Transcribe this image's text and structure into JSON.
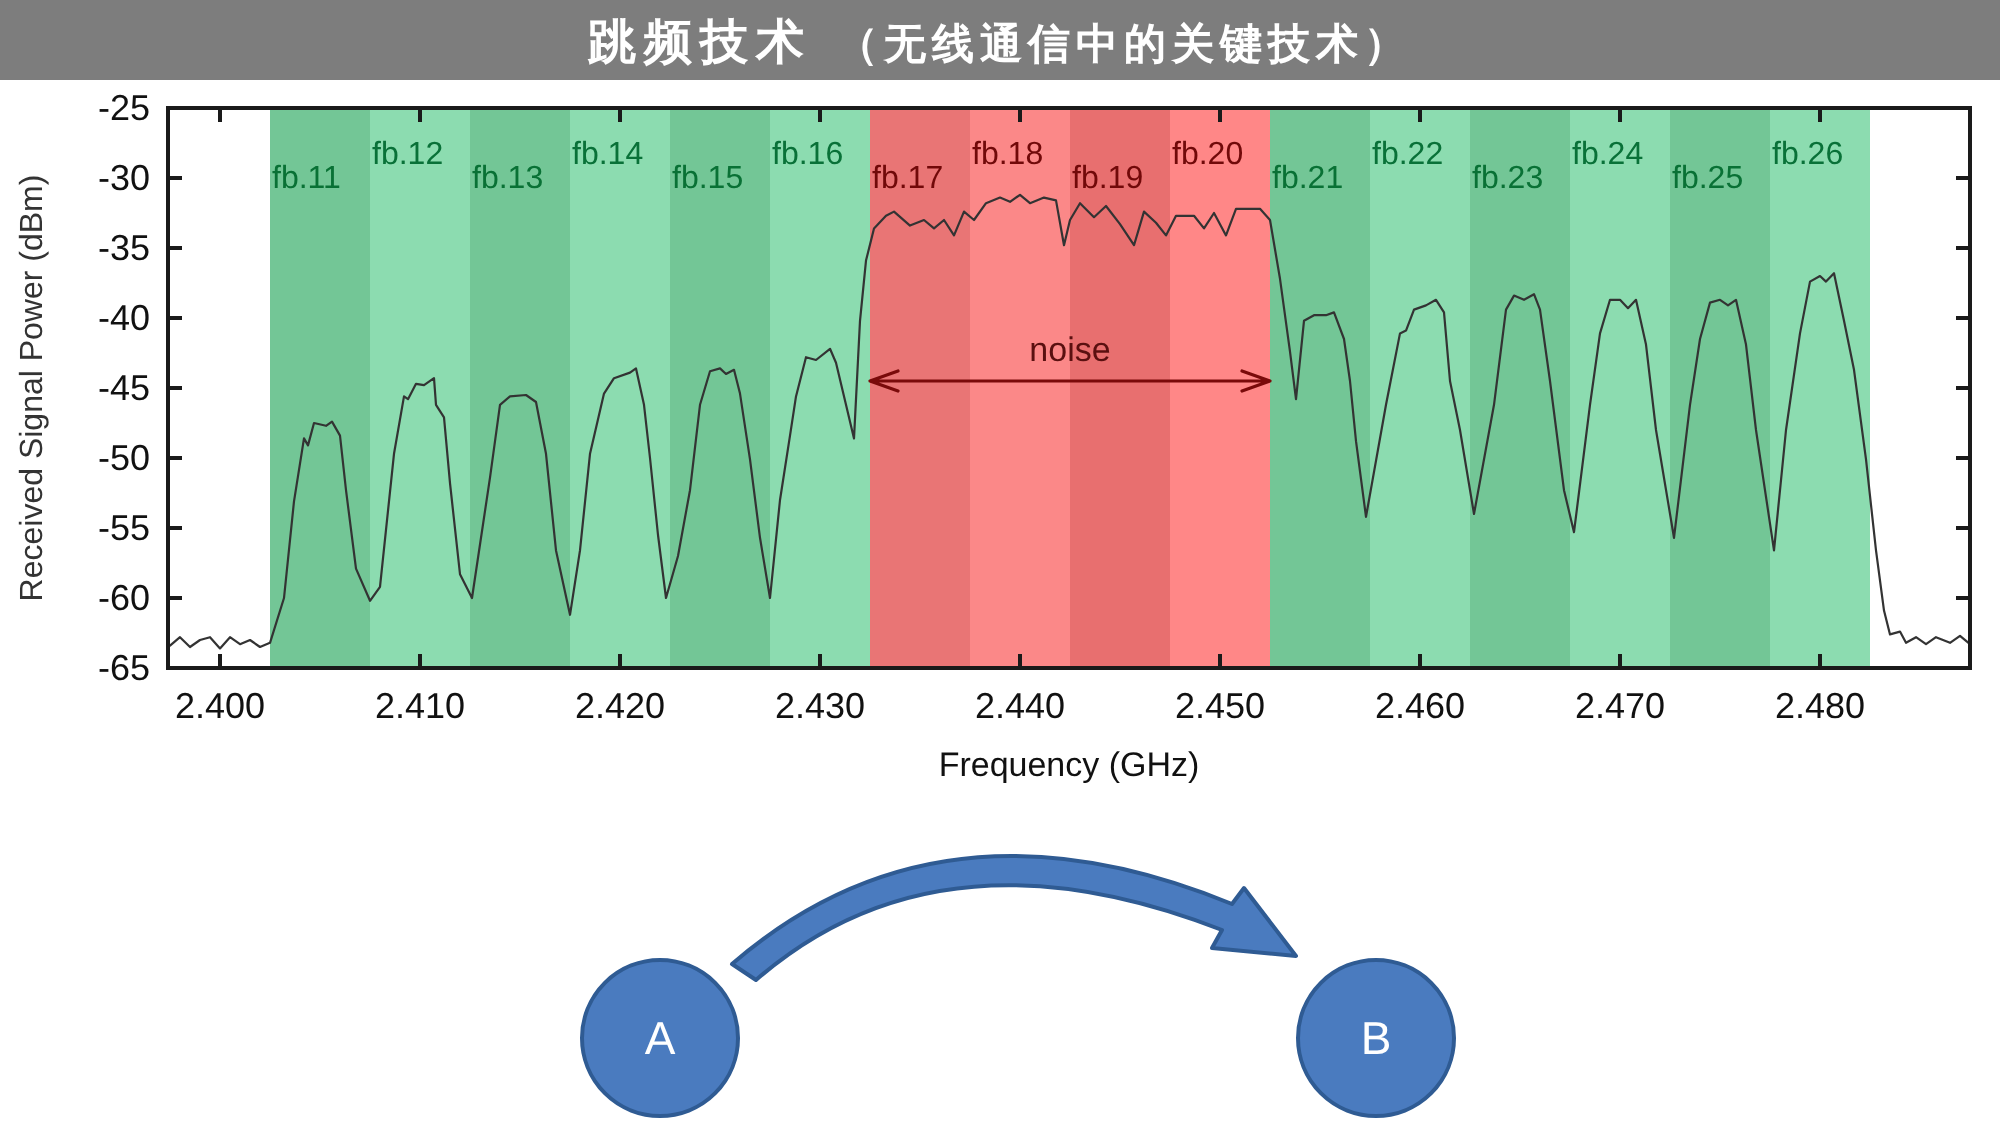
{
  "chart_data": {
    "type": "line",
    "title": "跳频技术",
    "subtitle": "（无线通信中的关键技术）",
    "xlabel": "Frequency (GHz)",
    "ylabel": "Received Signal Power (dBm)",
    "xlim": [
      2.3974,
      2.4875
    ],
    "xticks": [
      {
        "value": 2.4,
        "label": "2.400"
      },
      {
        "value": 2.41,
        "label": "2.410"
      },
      {
        "value": 2.42,
        "label": "2.420"
      },
      {
        "value": 2.43,
        "label": "2.430"
      },
      {
        "value": 2.44,
        "label": "2.440"
      },
      {
        "value": 2.45,
        "label": "2.450"
      },
      {
        "value": 2.46,
        "label": "2.460"
      },
      {
        "value": 2.47,
        "label": "2.470"
      },
      {
        "value": 2.48,
        "label": "2.480"
      }
    ],
    "ylim": [
      -65,
      -25
    ],
    "yticks": [
      -65,
      -60,
      -55,
      -50,
      -45,
      -40,
      -35,
      -30,
      -25
    ],
    "color": "#333333",
    "line_style": "solid",
    "x": [
      2.3975,
      2.398,
      2.3985,
      2.399,
      2.3995,
      2.4,
      2.4005,
      2.401,
      2.4015,
      2.402,
      2.4025,
      2.4032,
      2.4037,
      2.4042,
      2.4044,
      2.4047,
      2.4053,
      2.4056,
      2.406,
      2.4063,
      2.4068,
      2.4075,
      2.408,
      2.4087,
      2.4092,
      2.4094,
      2.4098,
      2.4102,
      2.4107,
      2.4108,
      2.4112,
      2.4115,
      2.412,
      2.4126,
      2.4135,
      2.414,
      2.4145,
      2.4153,
      2.4158,
      2.4163,
      2.4168,
      2.4175,
      2.418,
      2.4185,
      2.4192,
      2.4197,
      2.4205,
      2.4208,
      2.4212,
      2.4215,
      2.4219,
      2.4223,
      2.4229,
      2.4235,
      2.424,
      2.4245,
      2.425,
      2.4253,
      2.4257,
      2.426,
      2.4265,
      2.427,
      2.4275,
      2.428,
      2.4285,
      2.4288,
      2.4293,
      2.4298,
      2.4305,
      2.4308,
      2.4313,
      2.4317,
      2.432,
      2.4323,
      2.4327,
      2.4333,
      2.4337,
      2.4345,
      2.4352,
      2.4357,
      2.4362,
      2.4367,
      2.4372,
      2.4377,
      2.4383,
      2.439,
      2.4395,
      2.44,
      2.4405,
      2.4412,
      2.4418,
      2.4422,
      2.4425,
      2.443,
      2.4437,
      2.4443,
      2.445,
      2.4457,
      2.4462,
      2.4468,
      2.4473,
      2.4478,
      2.4487,
      2.4492,
      2.4497,
      2.4503,
      2.4508,
      2.452,
      2.4525,
      2.453,
      2.4535,
      2.4538,
      2.4542,
      2.4547,
      2.4553,
      2.4557,
      2.4562,
      2.4565,
      2.4568,
      2.4573,
      2.4583,
      2.459,
      2.4593,
      2.4597,
      2.4603,
      2.4608,
      2.4612,
      2.4615,
      2.462,
      2.4627,
      2.4637,
      2.4643,
      2.4647,
      2.4652,
      2.4657,
      2.466,
      2.4665,
      2.4672,
      2.4677,
      2.4685,
      2.469,
      2.4695,
      2.47,
      2.4704,
      2.4708,
      2.4713,
      2.4718,
      2.4727,
      2.4735,
      2.474,
      2.4745,
      2.475,
      2.4754,
      2.4758,
      2.4763,
      2.4768,
      2.4777,
      2.4783,
      2.479,
      2.4795,
      2.48,
      2.4803,
      2.4807,
      2.4812,
      2.4817,
      2.4823,
      2.4828,
      2.4832,
      2.4835,
      2.484,
      2.4843,
      2.4848,
      2.4853,
      2.4858,
      2.4865,
      2.487,
      2.4875
    ],
    "values": [
      -63.4,
      -62.8,
      -63.5,
      -63.0,
      -62.8,
      -63.6,
      -62.8,
      -63.3,
      -63.0,
      -63.5,
      -63.2,
      -60.0,
      -53.1,
      -48.6,
      -49.1,
      -47.5,
      -47.7,
      -47.4,
      -48.4,
      -52.3,
      -57.9,
      -60.2,
      -59.2,
      -49.7,
      -45.6,
      -45.8,
      -44.7,
      -44.8,
      -44.3,
      -46.2,
      -47.1,
      -51.8,
      -58.3,
      -60.0,
      -51.4,
      -46.2,
      -45.6,
      -45.5,
      -46.0,
      -49.7,
      -56.6,
      -61.2,
      -56.6,
      -49.7,
      -45.4,
      -44.3,
      -43.9,
      -43.6,
      -46.2,
      -50.0,
      -55.5,
      -60.0,
      -57.0,
      -52.3,
      -46.2,
      -43.8,
      -43.6,
      -44.0,
      -43.7,
      -45.4,
      -50.1,
      -55.7,
      -60.0,
      -53.0,
      -48.4,
      -45.6,
      -42.8,
      -43.0,
      -42.2,
      -43.2,
      -46.2,
      -48.6,
      -40.2,
      -35.9,
      -33.6,
      -32.7,
      -32.4,
      -33.4,
      -33.0,
      -33.6,
      -33.0,
      -34.1,
      -32.4,
      -33.0,
      -31.8,
      -31.4,
      -31.7,
      -31.2,
      -31.8,
      -31.4,
      -31.6,
      -34.8,
      -33.0,
      -31.8,
      -32.8,
      -32.0,
      -33.3,
      -34.8,
      -32.4,
      -33.2,
      -34.1,
      -32.7,
      -32.7,
      -33.6,
      -32.5,
      -34.1,
      -32.2,
      -32.2,
      -33.0,
      -37.2,
      -42.4,
      -45.8,
      -40.2,
      -39.8,
      -39.8,
      -39.6,
      -41.5,
      -44.5,
      -48.8,
      -54.2,
      -46.2,
      -41.1,
      -40.9,
      -39.4,
      -39.1,
      -38.7,
      -39.6,
      -44.5,
      -48.0,
      -54.0,
      -46.2,
      -39.4,
      -38.4,
      -38.7,
      -38.3,
      -39.4,
      -44.5,
      -52.3,
      -55.3,
      -46.2,
      -41.1,
      -38.7,
      -38.7,
      -39.3,
      -38.7,
      -41.9,
      -48.0,
      -55.7,
      -46.2,
      -41.5,
      -38.9,
      -38.7,
      -39.1,
      -38.7,
      -41.9,
      -48.0,
      -56.6,
      -48.0,
      -41.1,
      -37.4,
      -37.0,
      -37.4,
      -36.8,
      -40.2,
      -43.7,
      -50.1,
      -56.6,
      -60.9,
      -62.6,
      -62.4,
      -63.2,
      -62.8,
      -63.3,
      -62.8,
      -63.2,
      -62.7,
      -63.3
    ],
    "bands": [
      {
        "axis": "x",
        "from": 2.4025,
        "to": 2.4075,
        "label": "fb.11",
        "color": "#73c696"
      },
      {
        "axis": "x",
        "from": 2.4075,
        "to": 2.4125,
        "label": "fb.12",
        "color": "#8cdcb0"
      },
      {
        "axis": "x",
        "from": 2.4125,
        "to": 2.4175,
        "label": "fb.13",
        "color": "#73c696"
      },
      {
        "axis": "x",
        "from": 2.4175,
        "to": 2.4225,
        "label": "fb.14",
        "color": "#8cdcb0"
      },
      {
        "axis": "x",
        "from": 2.4225,
        "to": 2.4275,
        "label": "fb.15",
        "color": "#73c696"
      },
      {
        "axis": "x",
        "from": 2.4275,
        "to": 2.4325,
        "label": "fb.16",
        "color": "#8cdcb0"
      },
      {
        "axis": "x",
        "from": 2.4325,
        "to": 2.4375,
        "label": "fb.17",
        "color": "#e97575"
      },
      {
        "axis": "x",
        "from": 2.4375,
        "to": 2.4425,
        "label": "fb.18",
        "color": "#fb8888"
      },
      {
        "axis": "x",
        "from": 2.4425,
        "to": 2.4475,
        "label": "fb.19",
        "color": "#e86f6f"
      },
      {
        "axis": "x",
        "from": 2.4475,
        "to": 2.4525,
        "label": "fb.20",
        "color": "#ff8787"
      },
      {
        "axis": "x",
        "from": 2.4525,
        "to": 2.4575,
        "label": "fb.21",
        "color": "#73c696"
      },
      {
        "axis": "x",
        "from": 2.4575,
        "to": 2.4625,
        "label": "fb.22",
        "color": "#8cdcb0"
      },
      {
        "axis": "x",
        "from": 2.4625,
        "to": 2.4675,
        "label": "fb.23",
        "color": "#73c696"
      },
      {
        "axis": "x",
        "from": 2.4675,
        "to": 2.4725,
        "label": "fb.24",
        "color": "#8cdcb0"
      },
      {
        "axis": "x",
        "from": 2.4725,
        "to": 2.4775,
        "label": "fb.25",
        "color": "#73c696"
      },
      {
        "axis": "x",
        "from": 2.4775,
        "to": 2.4825,
        "label": "fb.26",
        "color": "#8cdcb0"
      }
    ],
    "annotations": [
      {
        "text": "noise",
        "x": 2.4425,
        "y": -44.5
      },
      "A",
      "B"
    ]
  }
}
